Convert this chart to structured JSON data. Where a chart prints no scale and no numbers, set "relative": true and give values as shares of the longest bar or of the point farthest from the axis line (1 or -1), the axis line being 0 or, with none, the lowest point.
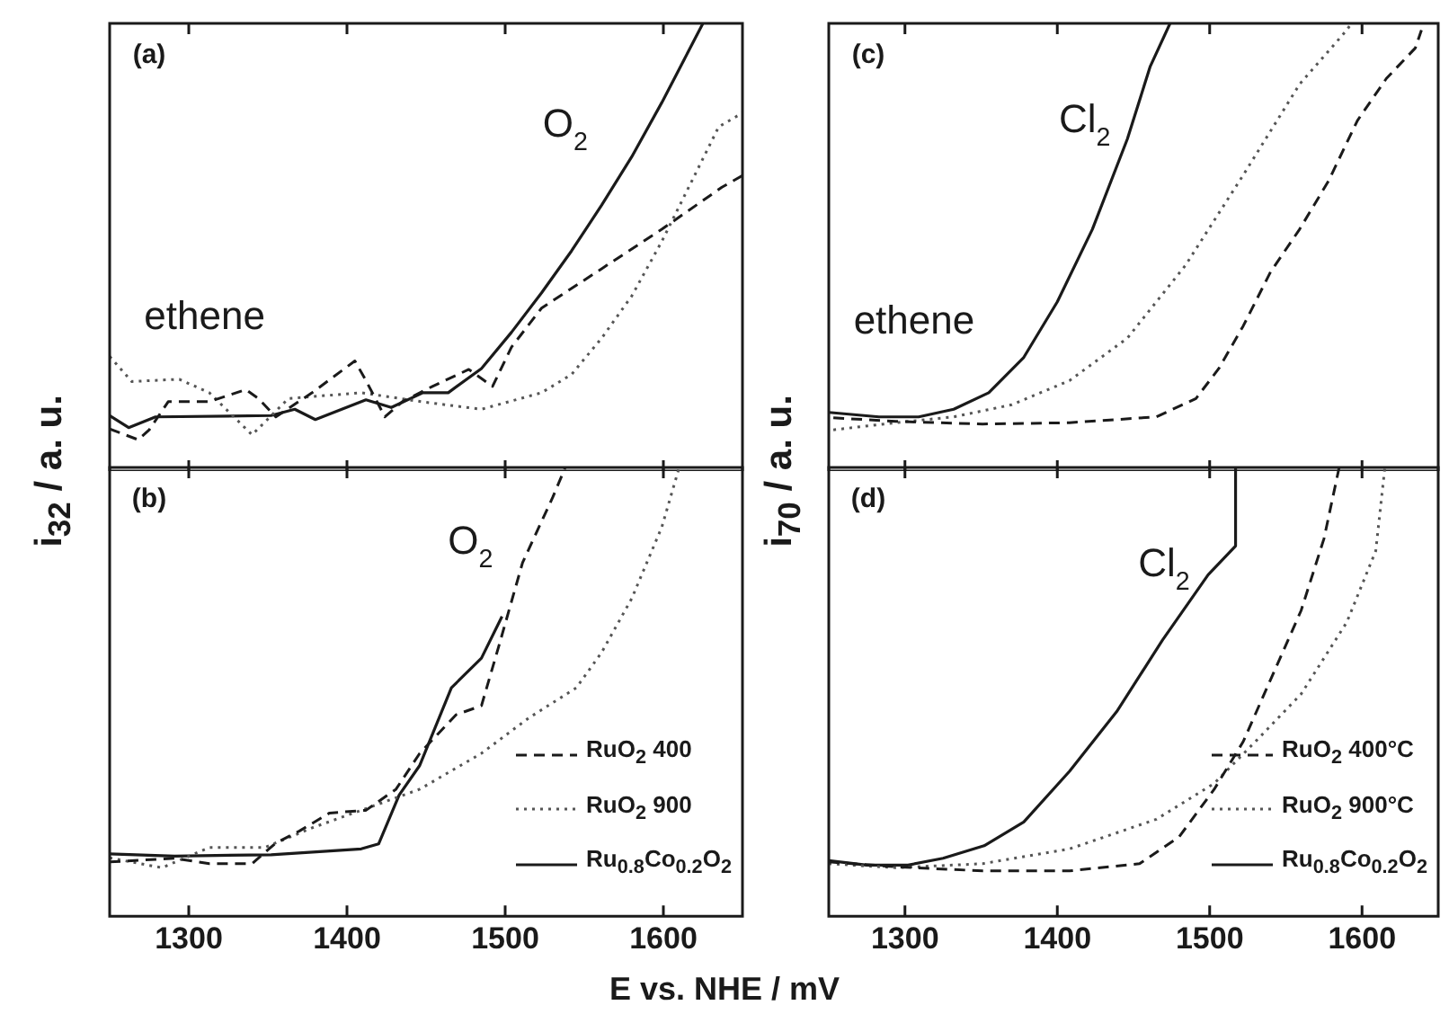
{
  "chart_data": [
    {
      "type": "line",
      "relative": true,
      "xlim": [
        1250,
        1650
      ],
      "xticks": [
        1300,
        1400,
        1500,
        1600
      ],
      "tick_labels": false,
      "grid": false,
      "legend": false,
      "ylabel": "i$_{32}$ / a. u.",
      "annotations": [
        "(a)",
        "ethene",
        "O$_{2}$"
      ],
      "series": [
        {
          "color": "#1a1a1a",
          "line_style": "dashed",
          "x": [
            1250,
            1268,
            1275,
            1287,
            1313,
            1336,
            1344,
            1355,
            1378,
            1405,
            1412,
            1424,
            1435,
            1454,
            1477,
            1492,
            1504,
            1523,
            1561,
            1599,
            1637,
            1650
          ],
          "values": [
            0.094,
            0.07,
            0.092,
            0.155,
            0.155,
            0.182,
            0.162,
            0.121,
            0.175,
            0.246,
            0.202,
            0.121,
            0.155,
            0.189,
            0.227,
            0.189,
            0.277,
            0.364,
            0.452,
            0.54,
            0.634,
            0.66
          ]
        },
        {
          "color": "#555555",
          "line_style": "dotted",
          "x": [
            1250,
            1264,
            1294,
            1313,
            1340,
            1363,
            1409,
            1447,
            1485,
            1523,
            1542,
            1561,
            1580,
            1599,
            1618,
            1635,
            1650
          ],
          "values": [
            0.256,
            0.2,
            0.205,
            0.175,
            0.081,
            0.162,
            0.175,
            0.155,
            0.138,
            0.175,
            0.216,
            0.297,
            0.391,
            0.513,
            0.648,
            0.769,
            0.8
          ]
        },
        {
          "color": "#1a1a1a",
          "line_style": "solid",
          "x": [
            1250,
            1262,
            1279,
            1352,
            1367,
            1380,
            1412,
            1428,
            1448,
            1464,
            1485,
            1504,
            1523,
            1542,
            1561,
            1580,
            1599,
            1625
          ],
          "values": [
            0.124,
            0.097,
            0.121,
            0.124,
            0.138,
            0.115,
            0.159,
            0.142,
            0.175,
            0.175,
            0.229,
            0.31,
            0.398,
            0.492,
            0.594,
            0.702,
            0.823,
            1.0
          ]
        }
      ]
    },
    {
      "type": "line",
      "relative": true,
      "xlim": [
        1250,
        1650
      ],
      "xticks": [
        1300,
        1400,
        1500,
        1600
      ],
      "tick_labels": "x",
      "grid": false,
      "legend": "bottom right",
      "xlabel": "E vs. NHE / mV",
      "annotations": [
        "(b)",
        "O$_{2}$"
      ],
      "series": [
        {
          "name": "RuO$_{2}$ 400",
          "color": "#1a1a1a",
          "line_style": "dashed",
          "x": [
            1250,
            1291,
            1313,
            1340,
            1355,
            1370,
            1389,
            1412,
            1431,
            1446,
            1469,
            1485,
            1496,
            1511,
            1530,
            1538
          ],
          "values": [
            0.121,
            0.129,
            0.117,
            0.117,
            0.163,
            0.19,
            0.23,
            0.236,
            0.283,
            0.363,
            0.449,
            0.469,
            0.602,
            0.788,
            0.933,
            1.0
          ]
        },
        {
          "name": "RuO$_{2}$ 900",
          "color": "#555555",
          "line_style": "dotted",
          "x": [
            1250,
            1283,
            1313,
            1348,
            1378,
            1409,
            1446,
            1485,
            1515,
            1545,
            1561,
            1580,
            1599,
            1610
          ],
          "values": [
            0.13,
            0.108,
            0.153,
            0.153,
            0.197,
            0.236,
            0.283,
            0.363,
            0.442,
            0.509,
            0.588,
            0.708,
            0.867,
            1.0
          ]
        },
        {
          "name": "Ru$_{0.8}$Co$_{0.2}$O$_{2}$",
          "color": "#1a1a1a",
          "line_style": "solid",
          "x": [
            1250,
            1291,
            1352,
            1409,
            1420,
            1433,
            1446,
            1466,
            1485,
            1498
          ],
          "values": [
            0.139,
            0.134,
            0.137,
            0.15,
            0.161,
            0.27,
            0.336,
            0.509,
            0.575,
            0.668
          ]
        }
      ]
    },
    {
      "type": "line",
      "relative": true,
      "xlim": [
        1250,
        1650
      ],
      "xticks": [
        1300,
        1400,
        1500,
        1600
      ],
      "tick_labels": false,
      "grid": false,
      "legend": false,
      "ylabel": "i$_{70}$ / a. u.",
      "annotations": [
        "(c)",
        "ethene",
        "Cl$_{2}$"
      ],
      "series": [
        {
          "color": "#1a1a1a",
          "line_style": "dashed",
          "x": [
            1253,
            1294,
            1351,
            1408,
            1465,
            1491,
            1506,
            1522,
            1540,
            1559,
            1578,
            1597,
            1616,
            1635,
            1639
          ],
          "values": [
            0.119,
            0.111,
            0.105,
            0.108,
            0.121,
            0.162,
            0.229,
            0.324,
            0.445,
            0.54,
            0.648,
            0.783,
            0.877,
            0.945,
            0.985
          ]
        },
        {
          "color": "#555555",
          "line_style": "dotted",
          "x": [
            1253,
            1294,
            1332,
            1370,
            1408,
            1446,
            1484,
            1522,
            1559,
            1590,
            1593
          ],
          "values": [
            0.092,
            0.108,
            0.121,
            0.148,
            0.202,
            0.297,
            0.459,
            0.661,
            0.864,
            0.985,
            1.0
          ]
        },
        {
          "color": "#1a1a1a",
          "line_style": "solid",
          "x": [
            1250,
            1283,
            1309,
            1332,
            1355,
            1378,
            1400,
            1423,
            1446,
            1461,
            1474
          ],
          "values": [
            0.131,
            0.121,
            0.121,
            0.138,
            0.175,
            0.254,
            0.378,
            0.54,
            0.742,
            0.904,
            1.0
          ]
        }
      ]
    },
    {
      "type": "line",
      "relative": true,
      "xlim": [
        1250,
        1650
      ],
      "xticks": [
        1300,
        1400,
        1500,
        1600
      ],
      "tick_labels": "x",
      "grid": false,
      "legend": "bottom right",
      "annotations": [
        "(d)",
        "Cl$_{2}$"
      ],
      "series": [
        {
          "name": "RuO$_{2}$ 400°C",
          "color": "#1a1a1a",
          "line_style": "dashed",
          "x": [
            1250,
            1294,
            1351,
            1408,
            1454,
            1480,
            1503,
            1522,
            1541,
            1560,
            1575,
            1585
          ],
          "values": [
            0.121,
            0.11,
            0.101,
            0.101,
            0.117,
            0.177,
            0.283,
            0.389,
            0.535,
            0.681,
            0.841,
            1.0
          ]
        },
        {
          "name": "RuO$_{2}$ 900°C",
          "color": "#555555",
          "line_style": "dotted",
          "x": [
            1250,
            1294,
            1351,
            1408,
            1465,
            1503,
            1530,
            1560,
            1590,
            1609,
            1615
          ],
          "values": [
            0.117,
            0.108,
            0.117,
            0.15,
            0.216,
            0.296,
            0.389,
            0.495,
            0.655,
            0.814,
            1.0
          ]
        },
        {
          "name": "Ru$_{0.8}$Co$_{0.2}$O$_{2}$",
          "color": "#1a1a1a",
          "line_style": "solid",
          "x": [
            1250,
            1275,
            1302,
            1325,
            1352,
            1378,
            1408,
            1439,
            1469,
            1499,
            1517,
            1517
          ],
          "values": [
            0.124,
            0.114,
            0.114,
            0.129,
            0.157,
            0.21,
            0.323,
            0.456,
            0.615,
            0.761,
            0.825,
            1.0
          ]
        }
      ]
    }
  ]
}
